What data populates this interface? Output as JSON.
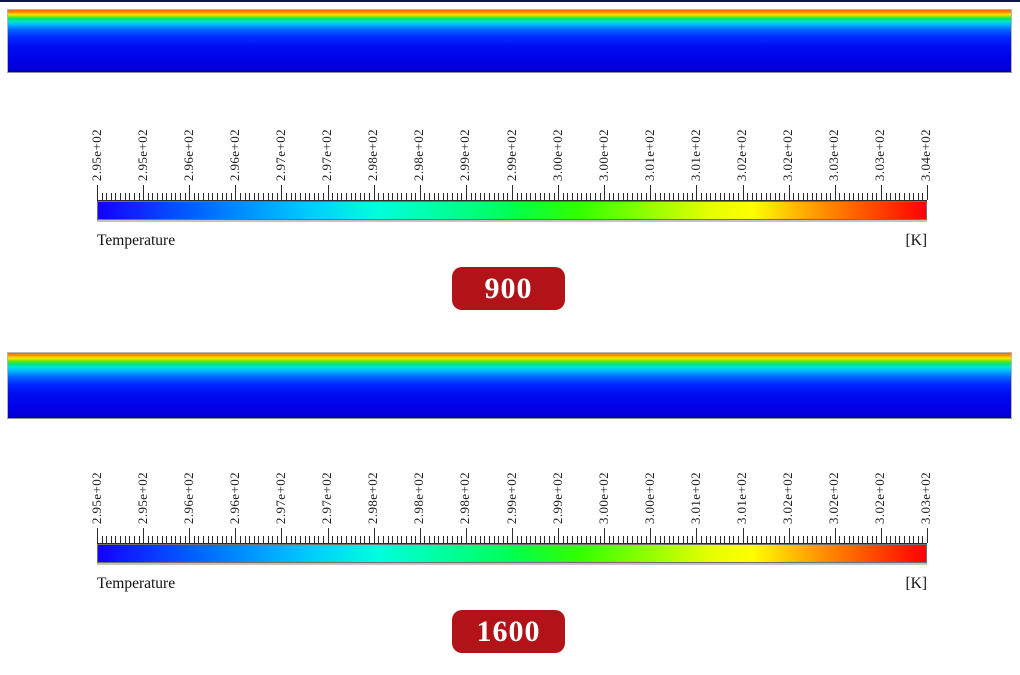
{
  "page": {
    "background": "#ffffff",
    "top_edge_color": "#0d1544"
  },
  "panels": [
    {
      "id": "900",
      "badge_label": "900",
      "badge_color": "#b11318",
      "field_gradient": [
        "#ff6400 0%",
        "#ff9600 4%",
        "#ffe100 7%",
        "#96eb00 10%",
        "#00e66e 14%",
        "#00e1d2 19%",
        "#00b4ff 24%",
        "#0064ff 32%",
        "#0028ff 44%",
        "#000ff0 58%",
        "#0000e6 80%",
        "#0000d9 96%",
        "#0000a6 100%"
      ],
      "colorbar": {
        "title": "Temperature",
        "units_label": "[K]",
        "tick_labels": [
          "2.95e+02",
          "2.95e+02",
          "2.96e+02",
          "2.96e+02",
          "2.97e+02",
          "2.97e+02",
          "2.98e+02",
          "2.98e+02",
          "2.99e+02",
          "2.99e+02",
          "3.00e+02",
          "3.00e+02",
          "3.01e+02",
          "3.01e+02",
          "3.02e+02",
          "3.02e+02",
          "3.03e+02",
          "3.03e+02",
          "3.04e+02"
        ],
        "gradient": [
          "#1400ff 0%",
          "#0064ff 12%",
          "#00c8ff 25%",
          "#00ffdc 34%",
          "#00ff82 45%",
          "#00ff50 50%",
          "#32ff00 58%",
          "#8cff00 66%",
          "#e6ff00 74%",
          "#ffff00 79%",
          "#ff9600 87%",
          "#ff2d00 96%",
          "#ff0000 100%"
        ]
      }
    },
    {
      "id": "1600",
      "badge_label": "1600",
      "badge_color": "#b11318",
      "field_gradient": [
        "#ff6400 0%",
        "#ff9b00 4%",
        "#ffe600 8%",
        "#78e600 12%",
        "#00e67d 17%",
        "#00e1dc 22%",
        "#00b4ff 28%",
        "#0064ff 37%",
        "#0028ff 48%",
        "#000ff0 62%",
        "#0000e6 82%",
        "#0000d9 96%",
        "#0000a6 100%"
      ],
      "colorbar": {
        "title": "Temperature",
        "units_label": "[K]",
        "tick_labels": [
          "2.95e+02",
          "2.95e+02",
          "2.96e+02",
          "2.96e+02",
          "2.97e+02",
          "2.97e+02",
          "2.98e+02",
          "2.98e+02",
          "2.98e+02",
          "2.99e+02",
          "2.99e+02",
          "3.00e+02",
          "3.00e+02",
          "3.01e+02",
          "3.01e+02",
          "3.02e+02",
          "3.02e+02",
          "3.02e+02",
          "3.03e+02"
        ],
        "gradient": [
          "#1400ff 0%",
          "#0064ff 12%",
          "#00c8ff 25%",
          "#00ffdc 34%",
          "#00ff82 45%",
          "#00ff50 50%",
          "#32ff00 58%",
          "#8cff00 66%",
          "#e6ff00 74%",
          "#ffff00 79%",
          "#ff9600 87%",
          "#ff2d00 96%",
          "#ff0000 100%"
        ]
      }
    }
  ],
  "chart_data": [
    {
      "type": "heatmap",
      "title": "900",
      "colorbar_label": "Temperature",
      "colorbar_units": "[K]",
      "colorbar_min": 295.0,
      "colorbar_max": 304.0,
      "colorbar_tick_labels": [
        "2.95e+02",
        "2.95e+02",
        "2.96e+02",
        "2.96e+02",
        "2.97e+02",
        "2.97e+02",
        "2.98e+02",
        "2.98e+02",
        "2.99e+02",
        "2.99e+02",
        "3.00e+02",
        "3.00e+02",
        "3.01e+02",
        "3.01e+02",
        "3.02e+02",
        "3.02e+02",
        "3.03e+02",
        "3.03e+02",
        "3.04e+02"
      ],
      "colormap": "rainbow (blue-cyan-green-yellow-red)",
      "field_description": "Long horizontal channel contour: thin hot layer (~304 K, orange-red) at top wall, rapid vertical decay through green/cyan to uniform cold blue (~295 K) over most of depth"
    },
    {
      "type": "heatmap",
      "title": "1600",
      "colorbar_label": "Temperature",
      "colorbar_units": "[K]",
      "colorbar_min": 295.0,
      "colorbar_max": 303.0,
      "colorbar_tick_labels": [
        "2.95e+02",
        "2.95e+02",
        "2.96e+02",
        "2.96e+02",
        "2.97e+02",
        "2.97e+02",
        "2.98e+02",
        "2.98e+02",
        "2.98e+02",
        "2.99e+02",
        "2.99e+02",
        "3.00e+02",
        "3.00e+02",
        "3.01e+02",
        "3.01e+02",
        "3.02e+02",
        "3.02e+02",
        "3.02e+02",
        "3.03e+02"
      ],
      "colormap": "rainbow (blue-cyan-green-yellow-red)",
      "field_description": "Same channel at higher case value: thin hot layer (~303 K) at top wall with slightly deeper green/cyan penetration before uniform cold blue (~295 K)"
    }
  ]
}
